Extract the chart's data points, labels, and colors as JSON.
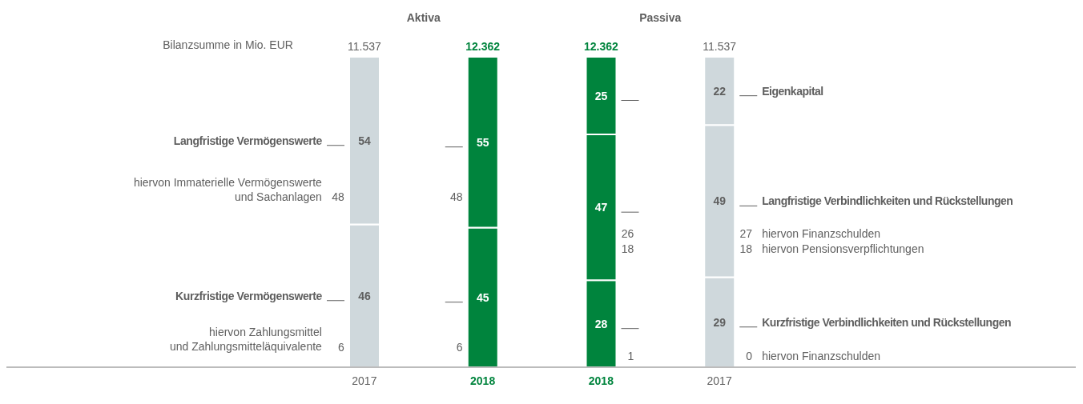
{
  "chart_data": {
    "type": "bar",
    "stacked": true,
    "categories": [
      "2017",
      "2018",
      "2018",
      "2017"
    ],
    "series": [
      {
        "name": "Kurzfristige Vermögenswerte",
        "colors": [
          "#cfd8dc",
          "#00843d",
          null,
          null
        ],
        "values": [
          46,
          45,
          null,
          null
        ]
      },
      {
        "name": "Langfristige Vermögenswerte",
        "colors": [
          "#cfd8dc",
          "#00843d",
          null,
          null
        ],
        "values": [
          54,
          55,
          null,
          null
        ]
      },
      {
        "name": "Kurzfristige Verbindlichkeiten und Rückstellungen",
        "colors": [
          null,
          null,
          "#00843d",
          "#cfd8dc"
        ],
        "values": [
          null,
          null,
          28,
          29
        ]
      },
      {
        "name": "Langfristige Verbindlichkeiten und Rückstellungen",
        "colors": [
          null,
          null,
          "#00843d",
          "#cfd8dc"
        ],
        "values": [
          null,
          null,
          47,
          49
        ]
      },
      {
        "name": "Eigenkapital",
        "colors": [
          null,
          null,
          "#00843d",
          "#cfd8dc"
        ],
        "values": [
          null,
          null,
          25,
          22
        ]
      }
    ],
    "data_labels": true,
    "annotations": [
      "Aktiva",
      "Passiva",
      "Bilanzsumme in Mio. EUR",
      "hiervon Immaterielle Vermögenswerte\nund Sachanlagen",
      "48",
      "48",
      "hiervon Zahlungsmittel\nund Zahlungsmitteläquivalente",
      "6",
      "6",
      "26",
      "18",
      "27",
      "18",
      "hiervon Finanzschulden",
      "hiervon Pensionsverpflichtungen",
      "1",
      "0",
      "hiervon Finanzschulden",
      "11.537",
      "12.362",
      "12.362",
      "11.537"
    ]
  }
}
